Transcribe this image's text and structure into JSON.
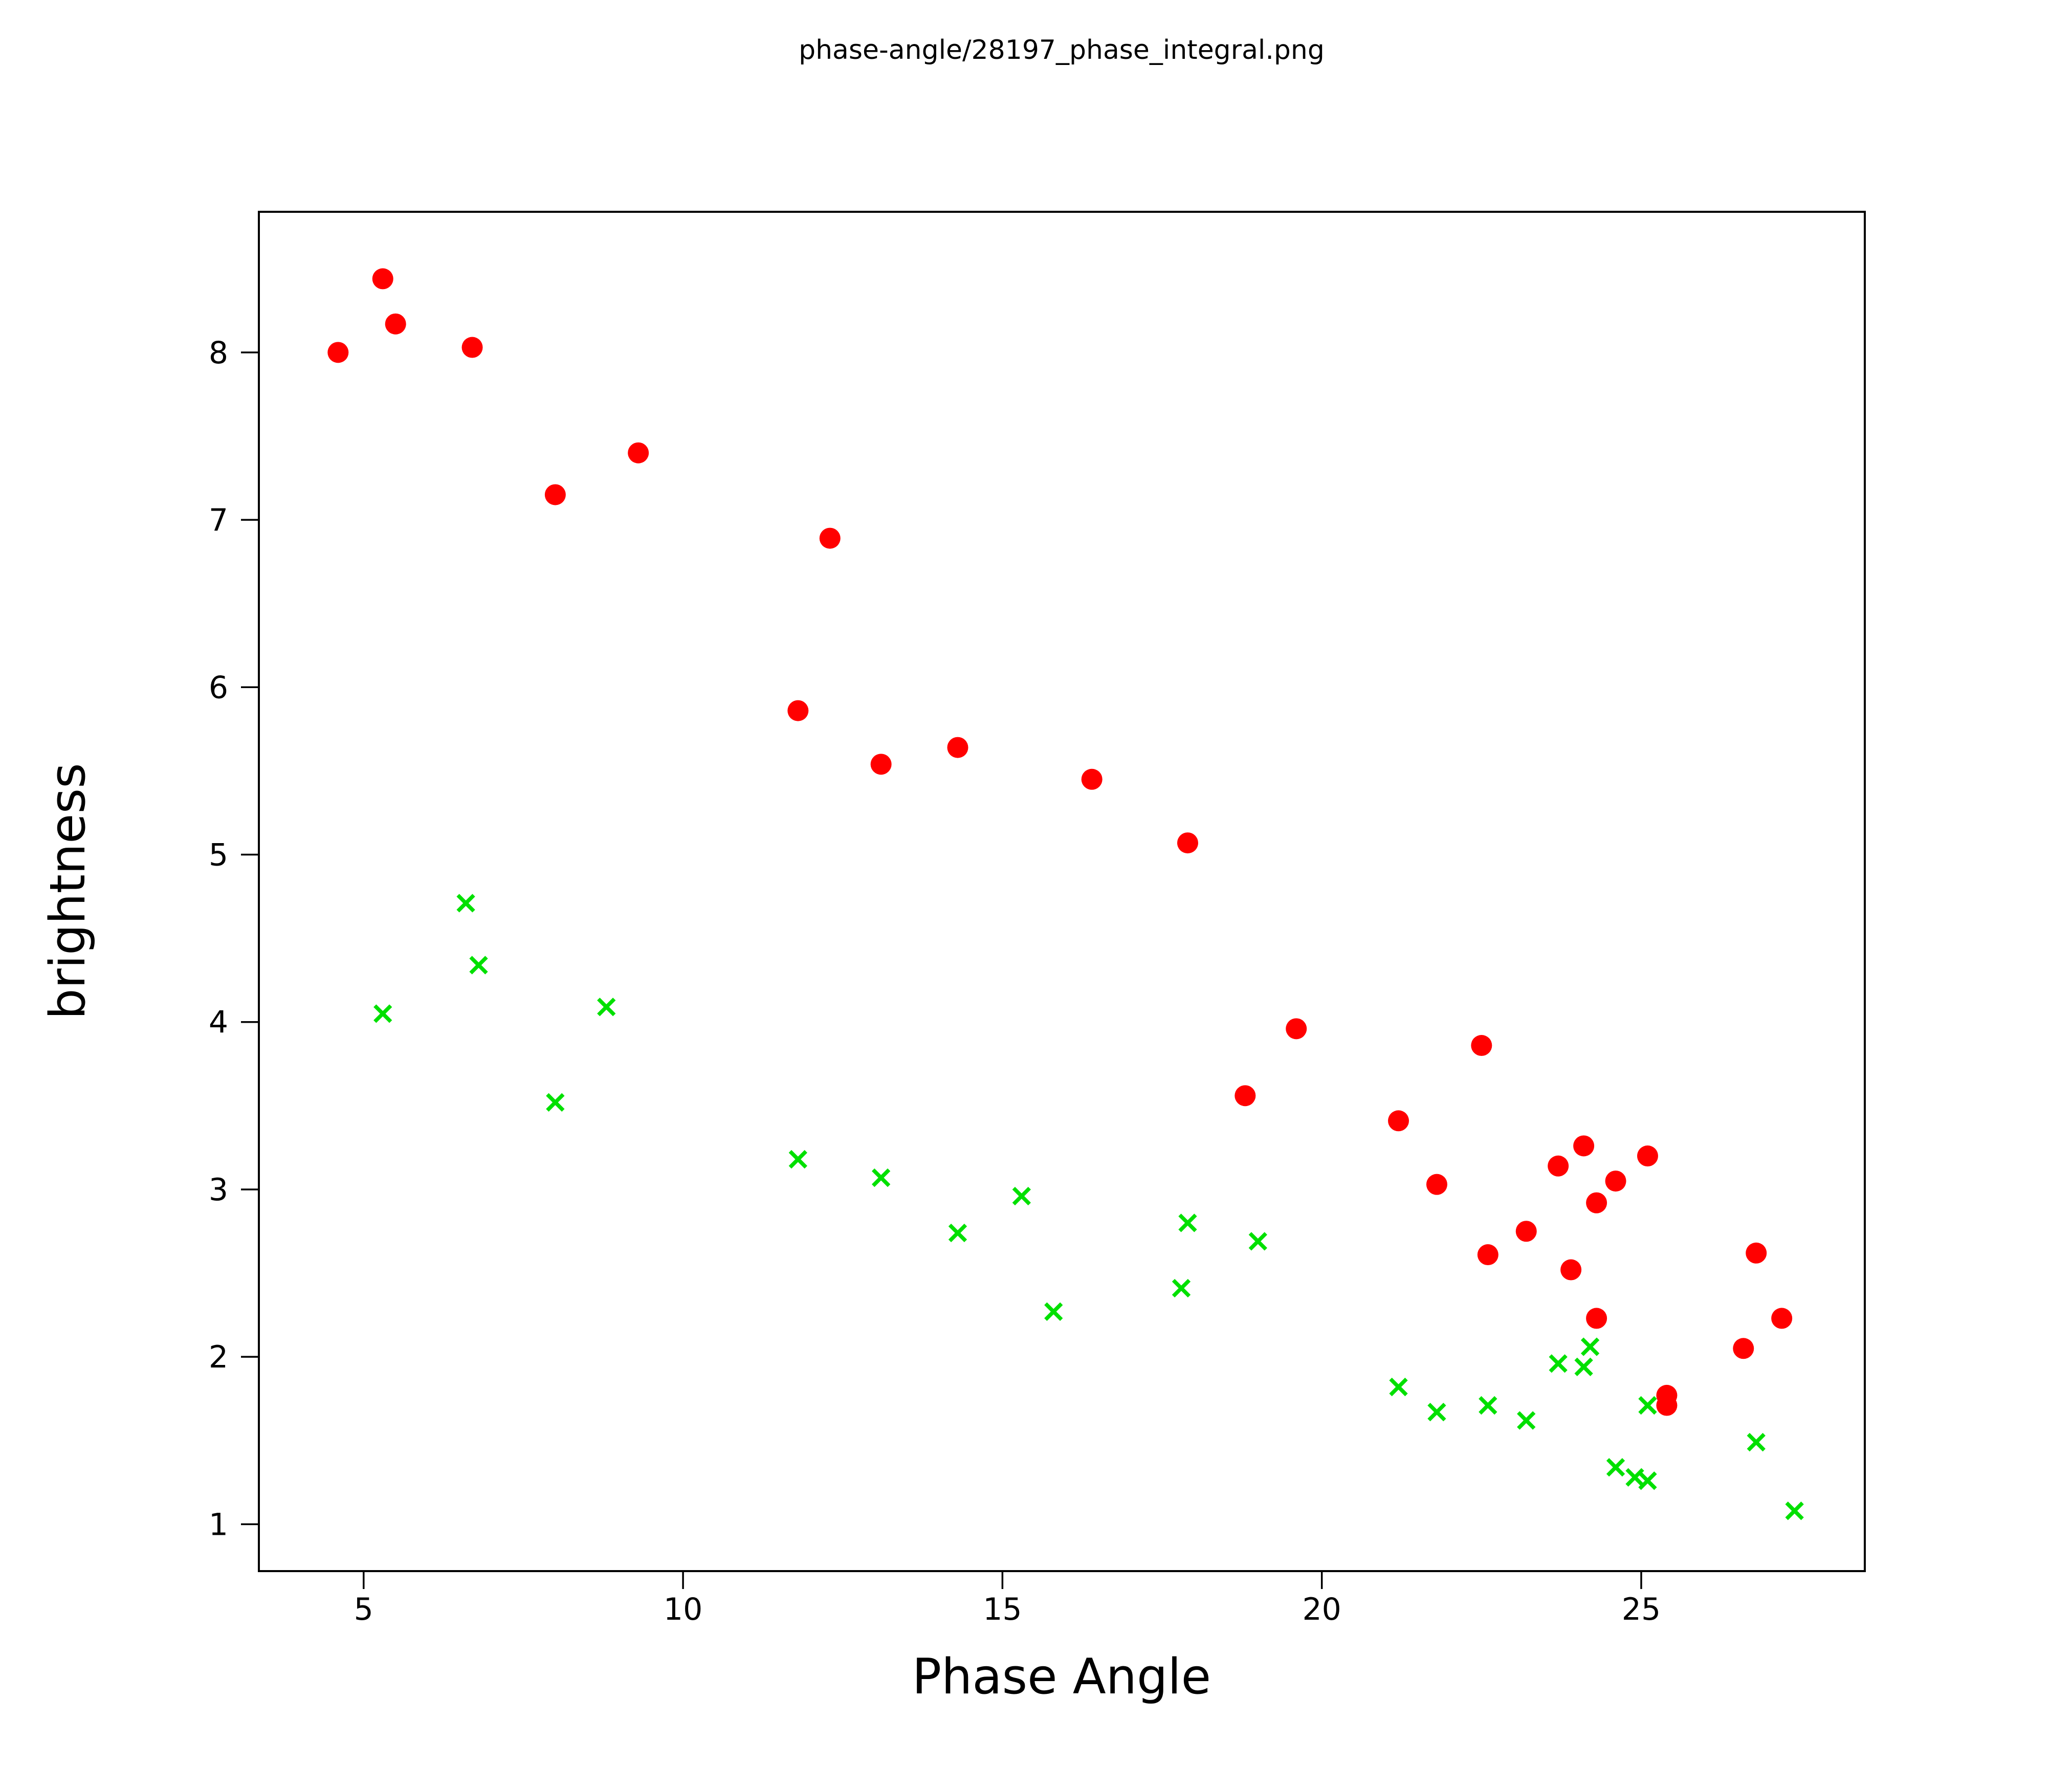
{
  "title": "phase-angle/28197_phase_integral.png",
  "chart_data": {
    "type": "scatter",
    "title": "phase-angle/28197_phase_integral.png",
    "xlabel": "Phase Angle",
    "ylabel": "brightness",
    "xlim": [
      3.36,
      28.5
    ],
    "ylim": [
      0.72,
      8.84
    ],
    "xticks": [
      5,
      10,
      15,
      20,
      25
    ],
    "yticks": [
      1,
      2,
      3,
      4,
      5,
      6,
      7,
      8
    ],
    "grid": false,
    "legend": "none",
    "series": [
      {
        "name": "red-circles",
        "marker": "circle",
        "color": "#ff0000",
        "points": [
          [
            4.6,
            8.0
          ],
          [
            5.3,
            8.44
          ],
          [
            5.5,
            8.17
          ],
          [
            6.7,
            8.03
          ],
          [
            8.0,
            7.15
          ],
          [
            9.3,
            7.4
          ],
          [
            12.3,
            6.89
          ],
          [
            11.8,
            5.86
          ],
          [
            13.1,
            5.54
          ],
          [
            14.3,
            5.64
          ],
          [
            16.4,
            5.45
          ],
          [
            17.9,
            5.07
          ],
          [
            18.8,
            3.56
          ],
          [
            19.6,
            3.96
          ],
          [
            21.2,
            3.41
          ],
          [
            21.8,
            3.03
          ],
          [
            22.5,
            3.86
          ],
          [
            22.6,
            2.61
          ],
          [
            23.2,
            2.75
          ],
          [
            23.7,
            3.14
          ],
          [
            24.1,
            3.26
          ],
          [
            24.3,
            2.92
          ],
          [
            24.6,
            3.05
          ],
          [
            25.1,
            3.2
          ],
          [
            23.9,
            2.52
          ],
          [
            24.3,
            2.23
          ],
          [
            25.4,
            1.77
          ],
          [
            25.4,
            1.71
          ],
          [
            26.8,
            2.62
          ],
          [
            27.2,
            2.23
          ],
          [
            26.6,
            2.05
          ]
        ]
      },
      {
        "name": "green-crosses",
        "marker": "x",
        "color": "#00e000",
        "points": [
          [
            5.3,
            4.05
          ],
          [
            6.6,
            4.71
          ],
          [
            6.8,
            4.34
          ],
          [
            8.0,
            3.52
          ],
          [
            8.8,
            4.09
          ],
          [
            11.8,
            3.18
          ],
          [
            13.1,
            3.07
          ],
          [
            14.3,
            2.74
          ],
          [
            15.3,
            2.96
          ],
          [
            15.8,
            2.27
          ],
          [
            17.8,
            2.41
          ],
          [
            17.9,
            2.8
          ],
          [
            19.0,
            2.69
          ],
          [
            21.2,
            1.82
          ],
          [
            21.8,
            1.67
          ],
          [
            22.6,
            1.71
          ],
          [
            23.2,
            1.62
          ],
          [
            23.7,
            1.96
          ],
          [
            24.1,
            1.94
          ],
          [
            24.2,
            2.06
          ],
          [
            24.6,
            1.34
          ],
          [
            24.9,
            1.28
          ],
          [
            25.1,
            1.26
          ],
          [
            25.1,
            1.71
          ],
          [
            26.8,
            1.49
          ],
          [
            27.4,
            1.08
          ]
        ]
      }
    ]
  }
}
